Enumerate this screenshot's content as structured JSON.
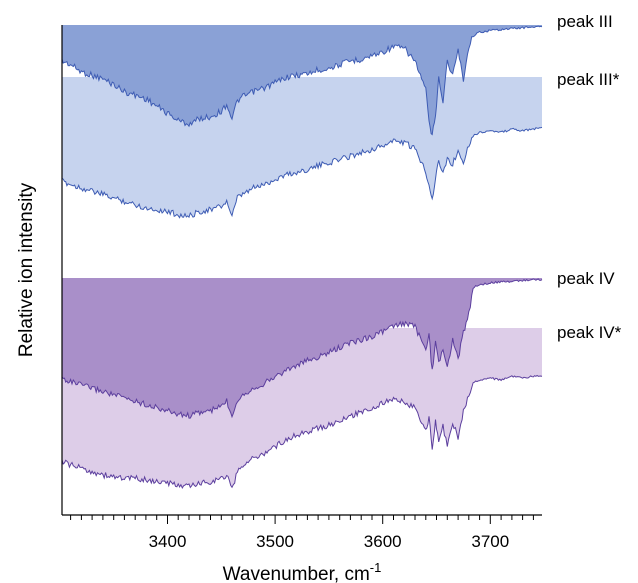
{
  "chart_data": {
    "type": "area",
    "xlabel": "Wavenumber, cm",
    "xlabel_superscript": "-1",
    "ylabel": "Relative ion intensity",
    "xlim": [
      3302,
      3748
    ],
    "x_ticks": [
      3400,
      3500,
      3600,
      3700
    ],
    "x_tick_labels": [
      "3400",
      "3500",
      "3600",
      "3700"
    ],
    "x_minor_step": 10,
    "y_ticks": [],
    "grid": false,
    "legend": "none",
    "colors": {
      "peak_III_fill": "#8aa1d6",
      "peak_III_line": "#3e5cb4",
      "peak_III_star_fill": "#c6d3ee",
      "peak_IV_fill": "#a98fc9",
      "peak_IV_line": "#5c3f9e",
      "peak_IV_star_fill": "#ddcde8"
    },
    "series": [
      {
        "name": "peak III",
        "fill": "peak_III_fill",
        "points": [
          [
            3302,
            0.2
          ],
          [
            3310,
            0.22
          ],
          [
            3320,
            0.26
          ],
          [
            3330,
            0.28
          ],
          [
            3340,
            0.3
          ],
          [
            3350,
            0.33
          ],
          [
            3360,
            0.37
          ],
          [
            3370,
            0.39
          ],
          [
            3380,
            0.41
          ],
          [
            3390,
            0.45
          ],
          [
            3400,
            0.49
          ],
          [
            3410,
            0.53
          ],
          [
            3420,
            0.55
          ],
          [
            3430,
            0.52
          ],
          [
            3440,
            0.51
          ],
          [
            3450,
            0.48
          ],
          [
            3455,
            0.44
          ],
          [
            3460,
            0.52
          ],
          [
            3465,
            0.42
          ],
          [
            3470,
            0.4
          ],
          [
            3480,
            0.37
          ],
          [
            3490,
            0.35
          ],
          [
            3500,
            0.32
          ],
          [
            3510,
            0.29
          ],
          [
            3520,
            0.28
          ],
          [
            3530,
            0.27
          ],
          [
            3540,
            0.25
          ],
          [
            3550,
            0.24
          ],
          [
            3560,
            0.22
          ],
          [
            3570,
            0.2
          ],
          [
            3580,
            0.19
          ],
          [
            3590,
            0.17
          ],
          [
            3600,
            0.15
          ],
          [
            3610,
            0.12
          ],
          [
            3620,
            0.13
          ],
          [
            3630,
            0.2
          ],
          [
            3640,
            0.36
          ],
          [
            3643,
            0.54
          ],
          [
            3646,
            0.62
          ],
          [
            3649,
            0.5
          ],
          [
            3652,
            0.3
          ],
          [
            3656,
            0.42
          ],
          [
            3660,
            0.2
          ],
          [
            3665,
            0.28
          ],
          [
            3670,
            0.14
          ],
          [
            3675,
            0.3
          ],
          [
            3680,
            0.12
          ],
          [
            3684,
            0.06
          ],
          [
            3690,
            0.04
          ],
          [
            3700,
            0.03
          ],
          [
            3710,
            0.025
          ],
          [
            3720,
            0.02
          ],
          [
            3730,
            0.015
          ],
          [
            3740,
            0.01
          ],
          [
            3748,
            0.01
          ]
        ]
      },
      {
        "name": "peak III*",
        "fill": "peak_III_star_fill",
        "points": [
          [
            3302,
            0.62
          ],
          [
            3310,
            0.64
          ],
          [
            3320,
            0.66
          ],
          [
            3330,
            0.68
          ],
          [
            3340,
            0.7
          ],
          [
            3350,
            0.72
          ],
          [
            3360,
            0.74
          ],
          [
            3370,
            0.76
          ],
          [
            3380,
            0.78
          ],
          [
            3390,
            0.79
          ],
          [
            3400,
            0.8
          ],
          [
            3410,
            0.82
          ],
          [
            3420,
            0.83
          ],
          [
            3430,
            0.8
          ],
          [
            3440,
            0.79
          ],
          [
            3450,
            0.77
          ],
          [
            3455,
            0.74
          ],
          [
            3460,
            0.83
          ],
          [
            3465,
            0.72
          ],
          [
            3470,
            0.7
          ],
          [
            3480,
            0.66
          ],
          [
            3490,
            0.64
          ],
          [
            3500,
            0.61
          ],
          [
            3510,
            0.58
          ],
          [
            3520,
            0.57
          ],
          [
            3530,
            0.55
          ],
          [
            3540,
            0.53
          ],
          [
            3550,
            0.51
          ],
          [
            3560,
            0.49
          ],
          [
            3570,
            0.47
          ],
          [
            3580,
            0.45
          ],
          [
            3590,
            0.43
          ],
          [
            3600,
            0.41
          ],
          [
            3610,
            0.38
          ],
          [
            3620,
            0.39
          ],
          [
            3630,
            0.43
          ],
          [
            3640,
            0.56
          ],
          [
            3643,
            0.64
          ],
          [
            3646,
            0.73
          ],
          [
            3649,
            0.6
          ],
          [
            3652,
            0.5
          ],
          [
            3656,
            0.58
          ],
          [
            3660,
            0.48
          ],
          [
            3665,
            0.52
          ],
          [
            3670,
            0.44
          ],
          [
            3675,
            0.5
          ],
          [
            3680,
            0.4
          ],
          [
            3684,
            0.35
          ],
          [
            3690,
            0.33
          ],
          [
            3700,
            0.32
          ],
          [
            3710,
            0.33
          ],
          [
            3720,
            0.31
          ],
          [
            3730,
            0.32
          ],
          [
            3740,
            0.31
          ],
          [
            3748,
            0.3
          ]
        ]
      },
      {
        "name": "peak IV",
        "fill": "peak_IV_fill",
        "points": [
          [
            3302,
            0.62
          ],
          [
            3310,
            0.64
          ],
          [
            3320,
            0.66
          ],
          [
            3330,
            0.68
          ],
          [
            3340,
            0.7
          ],
          [
            3350,
            0.72
          ],
          [
            3360,
            0.74
          ],
          [
            3370,
            0.76
          ],
          [
            3380,
            0.78
          ],
          [
            3390,
            0.8
          ],
          [
            3400,
            0.82
          ],
          [
            3410,
            0.84
          ],
          [
            3420,
            0.85
          ],
          [
            3430,
            0.83
          ],
          [
            3440,
            0.82
          ],
          [
            3450,
            0.79
          ],
          [
            3455,
            0.76
          ],
          [
            3460,
            0.85
          ],
          [
            3465,
            0.75
          ],
          [
            3470,
            0.72
          ],
          [
            3480,
            0.68
          ],
          [
            3490,
            0.65
          ],
          [
            3500,
            0.61
          ],
          [
            3510,
            0.57
          ],
          [
            3520,
            0.54
          ],
          [
            3530,
            0.51
          ],
          [
            3540,
            0.49
          ],
          [
            3550,
            0.46
          ],
          [
            3560,
            0.43
          ],
          [
            3570,
            0.4
          ],
          [
            3580,
            0.38
          ],
          [
            3590,
            0.36
          ],
          [
            3600,
            0.33
          ],
          [
            3610,
            0.3
          ],
          [
            3620,
            0.28
          ],
          [
            3630,
            0.3
          ],
          [
            3640,
            0.45
          ],
          [
            3643,
            0.34
          ],
          [
            3646,
            0.58
          ],
          [
            3649,
            0.4
          ],
          [
            3652,
            0.52
          ],
          [
            3656,
            0.44
          ],
          [
            3660,
            0.56
          ],
          [
            3665,
            0.38
          ],
          [
            3670,
            0.5
          ],
          [
            3675,
            0.34
          ],
          [
            3680,
            0.22
          ],
          [
            3684,
            0.06
          ],
          [
            3690,
            0.04
          ],
          [
            3700,
            0.03
          ],
          [
            3710,
            0.025
          ],
          [
            3720,
            0.02
          ],
          [
            3730,
            0.015
          ],
          [
            3740,
            0.01
          ],
          [
            3748,
            0.01
          ]
        ]
      },
      {
        "name": "peak IV*",
        "fill": "peak_IV_star_fill",
        "points": [
          [
            3302,
            0.8
          ],
          [
            3310,
            0.82
          ],
          [
            3320,
            0.84
          ],
          [
            3330,
            0.86
          ],
          [
            3340,
            0.88
          ],
          [
            3350,
            0.89
          ],
          [
            3360,
            0.9
          ],
          [
            3370,
            0.9
          ],
          [
            3380,
            0.91
          ],
          [
            3390,
            0.92
          ],
          [
            3400,
            0.93
          ],
          [
            3410,
            0.94
          ],
          [
            3420,
            0.95
          ],
          [
            3430,
            0.93
          ],
          [
            3440,
            0.92
          ],
          [
            3450,
            0.9
          ],
          [
            3455,
            0.88
          ],
          [
            3460,
            0.97
          ],
          [
            3465,
            0.86
          ],
          [
            3470,
            0.82
          ],
          [
            3480,
            0.78
          ],
          [
            3490,
            0.75
          ],
          [
            3500,
            0.71
          ],
          [
            3510,
            0.67
          ],
          [
            3520,
            0.64
          ],
          [
            3530,
            0.62
          ],
          [
            3540,
            0.6
          ],
          [
            3550,
            0.58
          ],
          [
            3560,
            0.56
          ],
          [
            3570,
            0.53
          ],
          [
            3580,
            0.5
          ],
          [
            3590,
            0.48
          ],
          [
            3600,
            0.45
          ],
          [
            3610,
            0.43
          ],
          [
            3620,
            0.44
          ],
          [
            3630,
            0.48
          ],
          [
            3640,
            0.62
          ],
          [
            3643,
            0.54
          ],
          [
            3646,
            0.72
          ],
          [
            3649,
            0.56
          ],
          [
            3652,
            0.68
          ],
          [
            3656,
            0.58
          ],
          [
            3660,
            0.72
          ],
          [
            3665,
            0.56
          ],
          [
            3670,
            0.66
          ],
          [
            3675,
            0.5
          ],
          [
            3680,
            0.4
          ],
          [
            3684,
            0.33
          ],
          [
            3690,
            0.31
          ],
          [
            3700,
            0.3
          ],
          [
            3710,
            0.31
          ],
          [
            3720,
            0.29
          ],
          [
            3730,
            0.3
          ],
          [
            3740,
            0.29
          ],
          [
            3748,
            0.29
          ]
        ]
      }
    ]
  }
}
